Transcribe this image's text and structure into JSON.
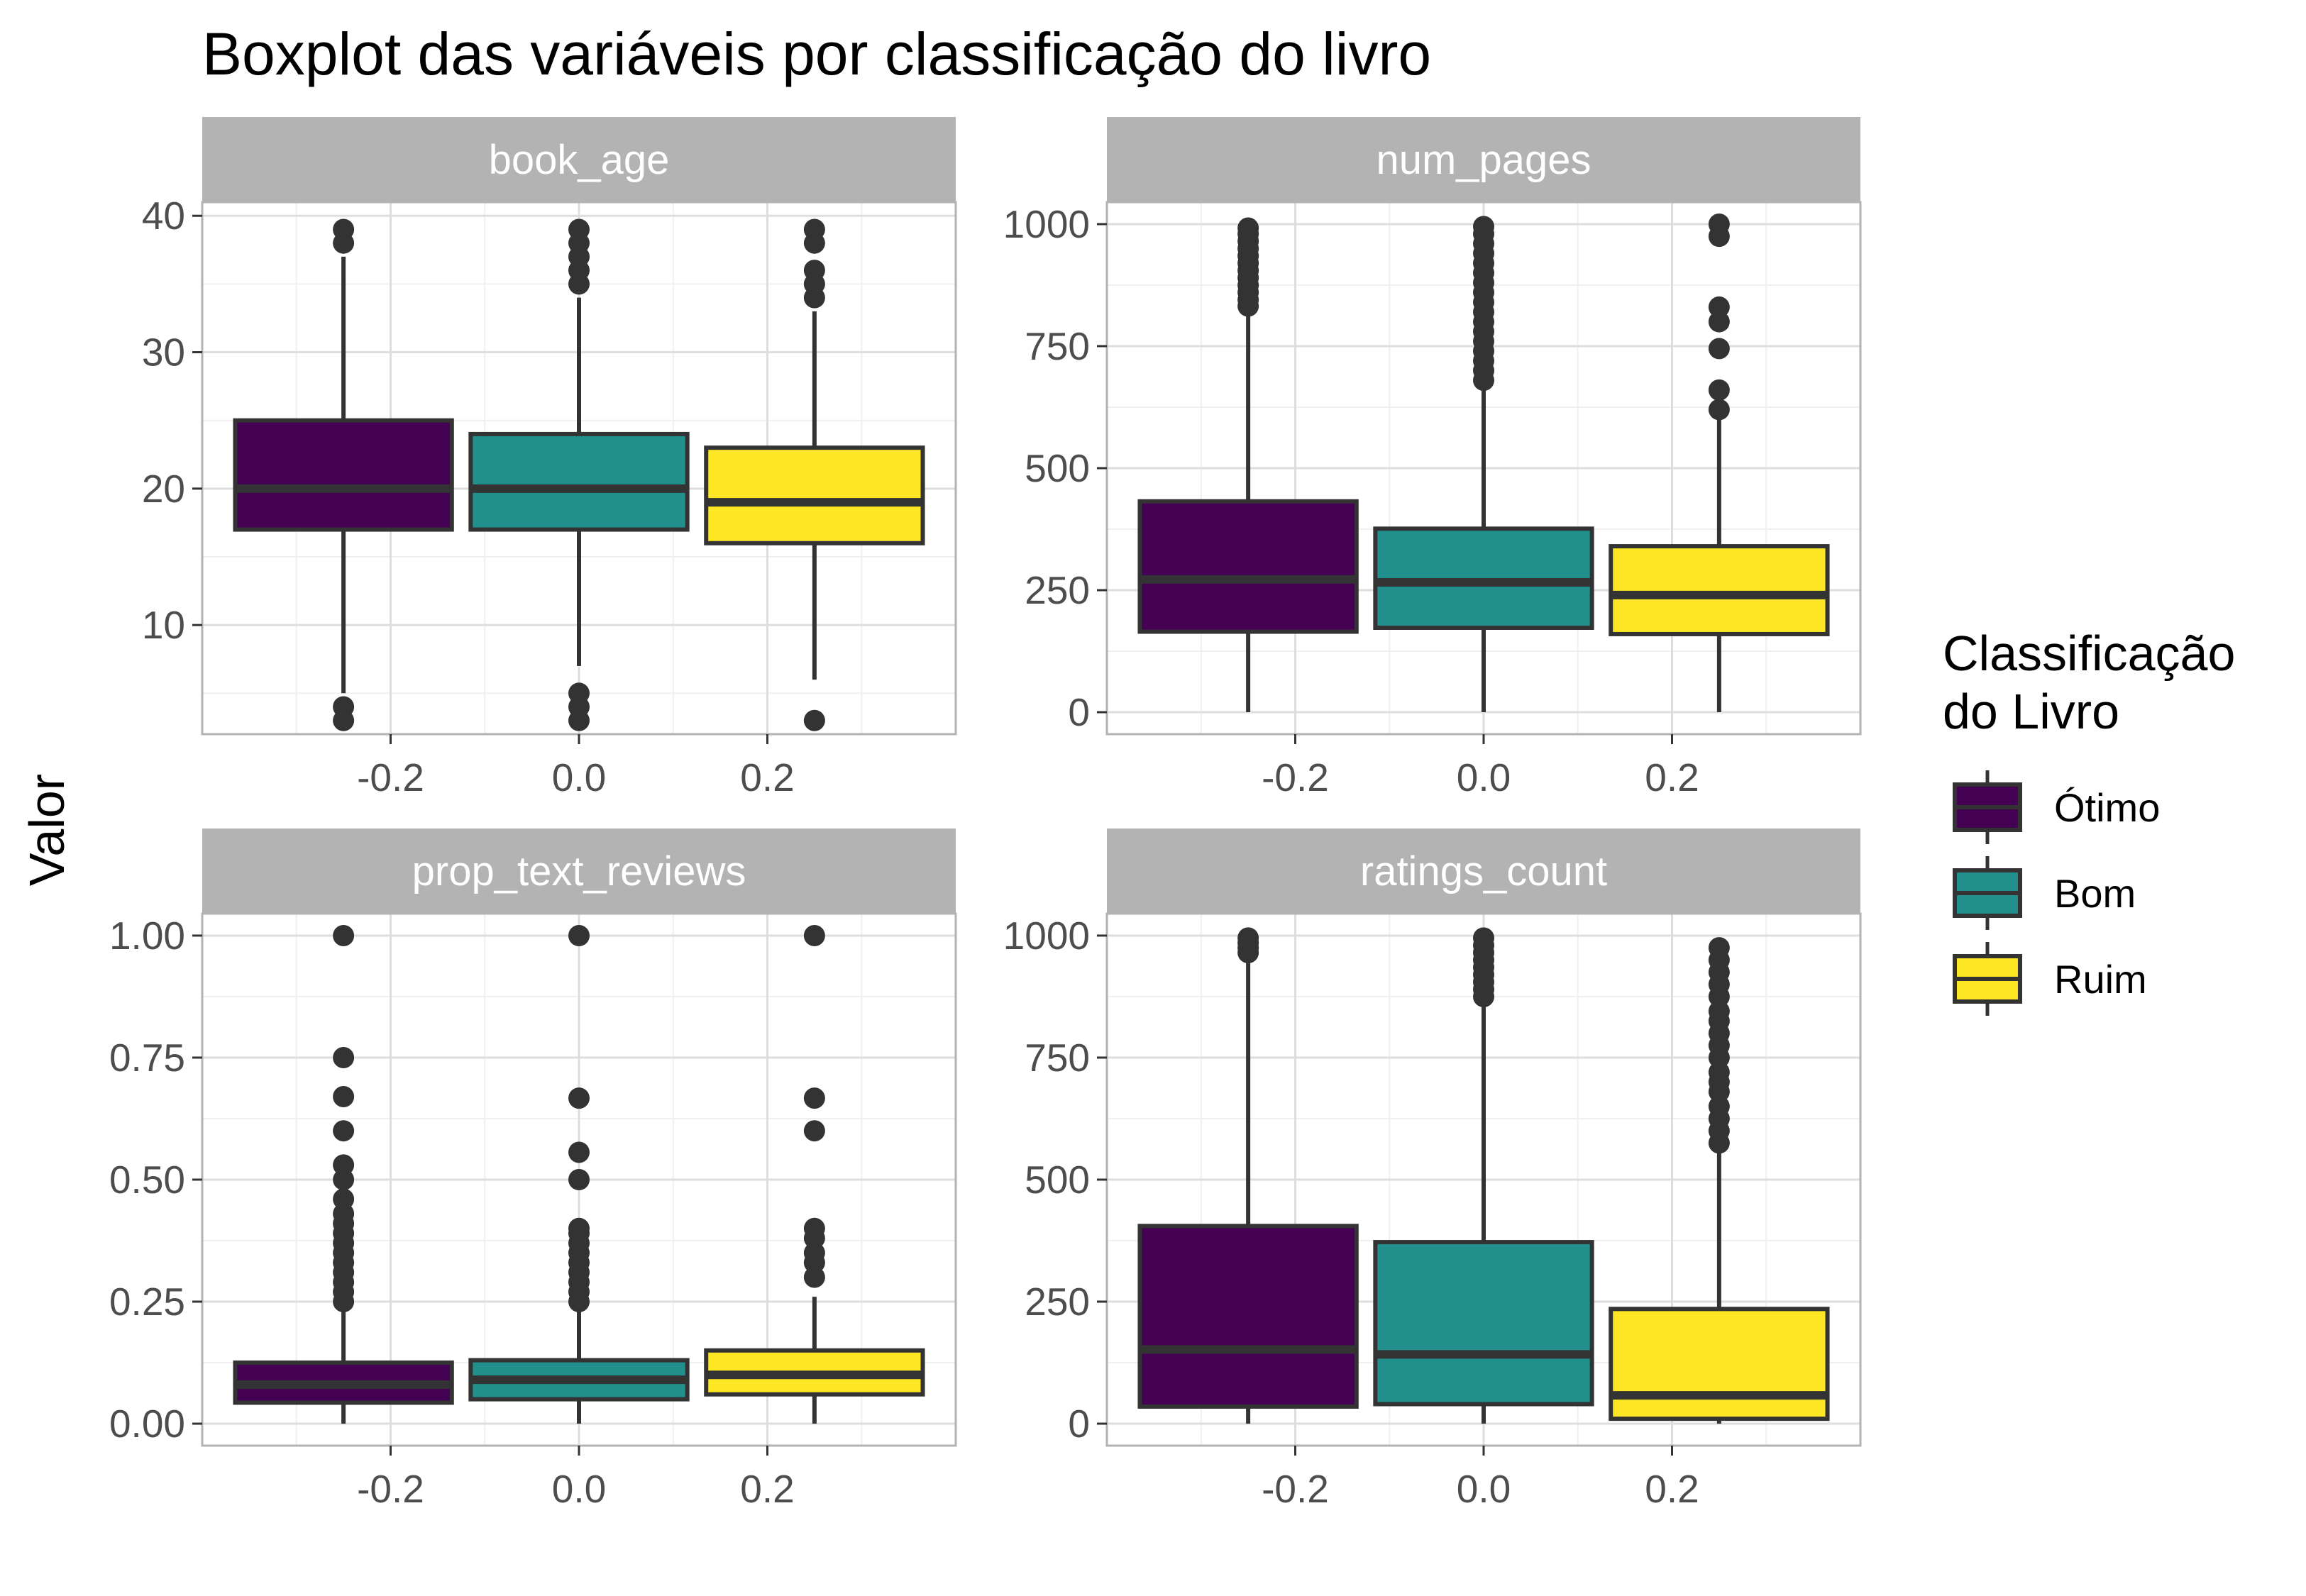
{
  "chart_data": {
    "type": "boxplot",
    "title": "Boxplot das variáveis por classificação do livro",
    "ylabel": "Valor",
    "x_ticks": [
      "-0.2",
      "0.0",
      "0.2"
    ],
    "legend": {
      "title_lines": [
        "Classificação",
        "do Livro"
      ],
      "position": "right",
      "items": [
        {
          "label": "Ótimo",
          "color": "#440154"
        },
        {
          "label": "Bom",
          "color": "#21908C"
        },
        {
          "label": "Ruim",
          "color": "#FDE725"
        }
      ]
    },
    "x_range": [
      -0.4,
      0.4
    ],
    "grid": true,
    "panels": [
      {
        "name": "book_age",
        "ylim": [
          2,
          41
        ],
        "y_ticks": [
          10,
          20,
          30,
          40
        ],
        "y_tick_labels": [
          "10",
          "20",
          "30",
          "40"
        ],
        "boxes": [
          {
            "group": "Ótimo",
            "x": -0.25,
            "min": 5,
            "q1": 17,
            "median": 20,
            "q3": 25,
            "max": 37,
            "outliers": [
              3,
              4,
              38,
              39
            ]
          },
          {
            "group": "Bom",
            "x": 0.0,
            "min": 7,
            "q1": 17,
            "median": 20,
            "q3": 24,
            "max": 34,
            "outliers": [
              3,
              4,
              5,
              35,
              36,
              37,
              38,
              39
            ]
          },
          {
            "group": "Ruim",
            "x": 0.25,
            "min": 6,
            "q1": 16,
            "median": 19,
            "q3": 23,
            "max": 33,
            "outliers": [
              3,
              34,
              35,
              36,
              38,
              39
            ]
          }
        ]
      },
      {
        "name": "num_pages",
        "ylim": [
          -45,
          1045
        ],
        "y_ticks": [
          0,
          250,
          500,
          750,
          1000
        ],
        "y_tick_labels": [
          "0",
          "250",
          "500",
          "750",
          "1000"
        ],
        "boxes": [
          {
            "group": "Ótimo",
            "x": -0.25,
            "min": 0,
            "q1": 165,
            "median": 272,
            "q3": 432,
            "max": 825,
            "outliers": [
              832,
              845,
              860,
              875,
              890,
              905,
              920,
              935,
              950,
              965,
              980,
              992
            ]
          },
          {
            "group": "Bom",
            "x": 0.0,
            "min": 0,
            "q1": 173,
            "median": 266,
            "q3": 376,
            "max": 670,
            "outliers": [
              680,
              700,
              720,
              740,
              760,
              780,
              800,
              820,
              840,
              860,
              880,
              900,
              920,
              940,
              960,
              980,
              995
            ]
          },
          {
            "group": "Ruim",
            "x": 0.25,
            "min": 0,
            "q1": 160,
            "median": 240,
            "q3": 340,
            "max": 610,
            "outliers": [
              620,
              660,
              745,
              800,
              830,
              975,
              1000
            ]
          }
        ]
      },
      {
        "name": "prop_text_reviews",
        "ylim": [
          -0.045,
          1.045
        ],
        "y_ticks": [
          0,
          0.25,
          0.5,
          0.75,
          1
        ],
        "y_tick_labels": [
          "0.00",
          "0.25",
          "0.50",
          "0.75",
          "1.00"
        ],
        "boxes": [
          {
            "group": "Ótimo",
            "x": -0.25,
            "min": 0,
            "q1": 0.043,
            "median": 0.08,
            "q3": 0.125,
            "max": 0.24,
            "outliers": [
              0.25,
              0.27,
              0.29,
              0.31,
              0.33,
              0.35,
              0.37,
              0.39,
              0.41,
              0.43,
              0.46,
              0.5,
              0.53,
              0.6,
              0.67,
              0.75,
              1.0
            ]
          },
          {
            "group": "Bom",
            "x": 0.0,
            "min": 0,
            "q1": 0.05,
            "median": 0.09,
            "q3": 0.13,
            "max": 0.24,
            "outliers": [
              0.25,
              0.27,
              0.29,
              0.31,
              0.33,
              0.35,
              0.37,
              0.39,
              0.4,
              0.5,
              0.556,
              0.667,
              1.0
            ]
          },
          {
            "group": "Ruim",
            "x": 0.25,
            "min": 0,
            "q1": 0.06,
            "median": 0.1,
            "q3": 0.15,
            "max": 0.26,
            "outliers": [
              0.3,
              0.33,
              0.35,
              0.38,
              0.4,
              0.6,
              0.667,
              1.0
            ]
          }
        ]
      },
      {
        "name": "ratings_count",
        "ylim": [
          -45,
          1045
        ],
        "y_ticks": [
          0,
          250,
          500,
          750,
          1000
        ],
        "y_tick_labels": [
          "0",
          "250",
          "500",
          "750",
          "1000"
        ],
        "boxes": [
          {
            "group": "Ótimo",
            "x": -0.25,
            "min": 0,
            "q1": 35,
            "median": 152,
            "q3": 405,
            "max": 955,
            "outliers": [
              965,
              975,
              985,
              995
            ]
          },
          {
            "group": "Bom",
            "x": 0.0,
            "min": 0,
            "q1": 40,
            "median": 142,
            "q3": 372,
            "max": 865,
            "outliers": [
              875,
              890,
              905,
              920,
              935,
              950,
              965,
              980,
              995
            ]
          },
          {
            "group": "Ruim",
            "x": 0.25,
            "min": 0,
            "q1": 10,
            "median": 58,
            "q3": 235,
            "max": 565,
            "outliers": [
              575,
              600,
              625,
              650,
              680,
              700,
              720,
              750,
              775,
              800,
              825,
              845,
              875,
              900,
              925,
              950,
              975
            ]
          }
        ]
      }
    ]
  }
}
